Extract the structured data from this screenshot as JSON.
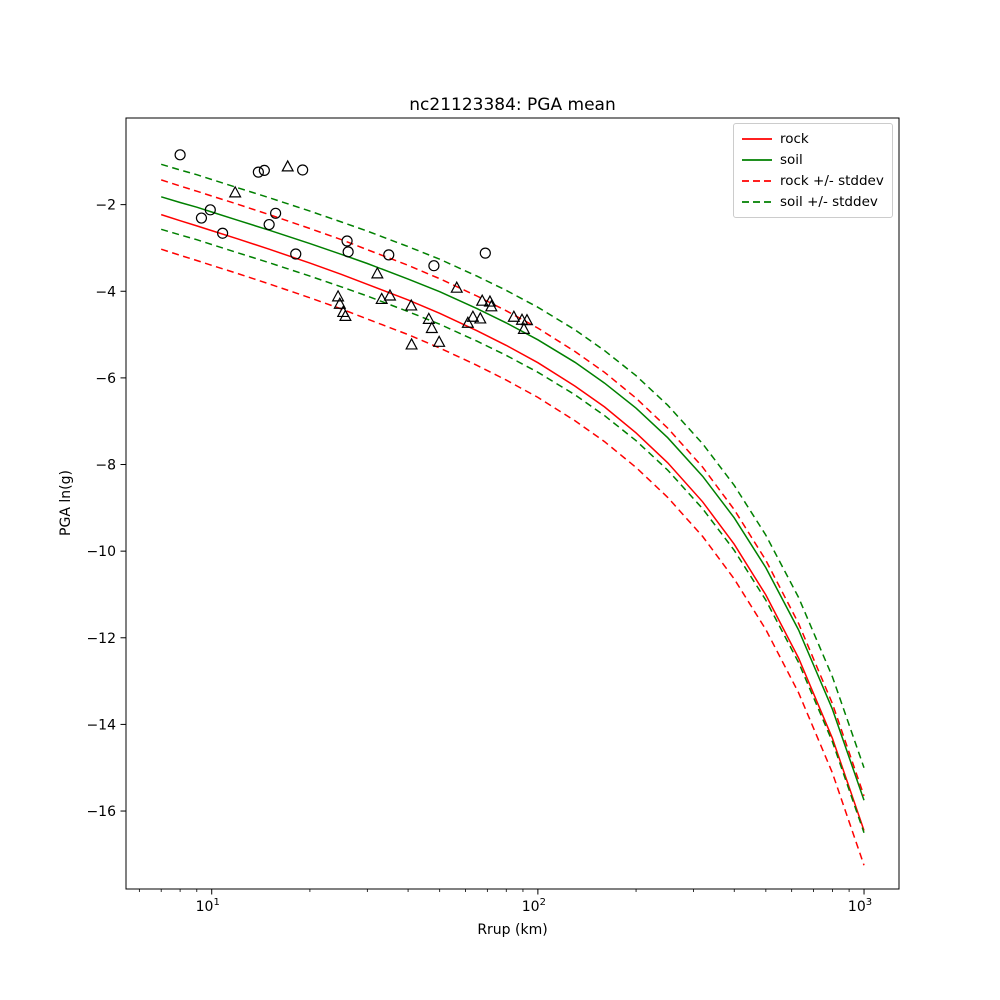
{
  "figure": {
    "title": "nc21123384: PGA mean",
    "xlabel": "Rrup (km)",
    "ylabel": "PGA ln(g)",
    "background": "#ffffff"
  },
  "colors": {
    "rock": "#ff0000",
    "soil": "#008000",
    "marker_edge": "#000000",
    "axis": "#000000",
    "legend_border": "#cccccc"
  },
  "legend": {
    "position": "upper right",
    "entries": [
      {
        "label": "rock",
        "color": "#ff0000",
        "dashed": false
      },
      {
        "label": "soil",
        "color": "#008000",
        "dashed": false
      },
      {
        "label": "rock +/- stddev",
        "color": "#ff0000",
        "dashed": true
      },
      {
        "label": "soil +/- stddev",
        "color": "#008000",
        "dashed": true
      }
    ]
  },
  "chart_data": {
    "type": "line",
    "title": "nc21123384: PGA mean",
    "xlabel": "Rrup (km)",
    "ylabel": "PGA ln(g)",
    "xscale": "log",
    "yscale": "linear",
    "xlim": [
      5.46,
      1280
    ],
    "ylim": [
      -17.8,
      0.0
    ],
    "grid": false,
    "x_major_ticks": [
      {
        "value": 10,
        "base": "10",
        "exp": "1"
      },
      {
        "value": 100,
        "base": "10",
        "exp": "2"
      },
      {
        "value": 1000,
        "base": "10",
        "exp": "3"
      }
    ],
    "x_minor_ticks": [
      6,
      7,
      8,
      9,
      20,
      30,
      40,
      50,
      60,
      70,
      80,
      90,
      200,
      300,
      400,
      500,
      600,
      700,
      800,
      900
    ],
    "y_ticks": [
      {
        "value": -2,
        "label": "−2"
      },
      {
        "value": -4,
        "label": "−4"
      },
      {
        "value": -6,
        "label": "−6"
      },
      {
        "value": -8,
        "label": "−8"
      },
      {
        "value": -10,
        "label": "−10"
      },
      {
        "value": -12,
        "label": "−12"
      },
      {
        "value": -14,
        "label": "−14"
      },
      {
        "value": -16,
        "label": "−16"
      }
    ],
    "series": [
      {
        "name": "rock",
        "style": "solid",
        "color": "#ff0000",
        "linewidth": 1.5,
        "x": [
          7,
          8,
          9,
          10,
          12,
          15,
          20,
          25,
          30,
          40,
          50,
          65,
          80,
          100,
          130,
          160,
          200,
          250,
          320,
          400,
          500,
          630,
          800,
          1000
        ],
        "y": [
          -2.23,
          -2.37,
          -2.49,
          -2.6,
          -2.79,
          -3.03,
          -3.35,
          -3.61,
          -3.84,
          -4.2,
          -4.51,
          -4.91,
          -5.25,
          -5.65,
          -6.19,
          -6.67,
          -7.27,
          -7.96,
          -8.86,
          -9.84,
          -11.01,
          -12.47,
          -14.32,
          -16.45
        ]
      },
      {
        "name": "soil",
        "style": "solid",
        "color": "#008000",
        "linewidth": 1.5,
        "x": [
          7,
          8,
          9,
          10,
          12,
          15,
          20,
          25,
          30,
          40,
          50,
          65,
          80,
          100,
          130,
          160,
          200,
          250,
          320,
          400,
          500,
          630,
          800,
          1000
        ],
        "y": [
          -1.82,
          -1.95,
          -2.06,
          -2.17,
          -2.36,
          -2.59,
          -2.9,
          -3.15,
          -3.36,
          -3.72,
          -4.01,
          -4.4,
          -4.73,
          -5.12,
          -5.64,
          -6.12,
          -6.7,
          -7.38,
          -8.27,
          -9.23,
          -10.38,
          -11.82,
          -13.65,
          -15.75
        ]
      },
      {
        "name": "rock +/- stddev",
        "style": "dashed",
        "color": "#ff0000",
        "linewidth": 1.5,
        "derived_from": "rock",
        "sigma": 0.8
      },
      {
        "name": "soil +/- stddev",
        "style": "dashed",
        "color": "#008000",
        "linewidth": 1.5,
        "derived_from": "soil",
        "sigma": 0.75
      }
    ],
    "scatter": [
      {
        "name": "recorded-circles",
        "marker": "circle",
        "edge_color": "#000000",
        "fill": "none",
        "points": [
          [
            8.0,
            -0.85
          ],
          [
            9.3,
            -2.31
          ],
          [
            9.9,
            -2.12
          ],
          [
            10.8,
            -2.66
          ],
          [
            13.9,
            -1.25
          ],
          [
            14.5,
            -1.21
          ],
          [
            15.0,
            -2.46
          ],
          [
            15.7,
            -2.2
          ],
          [
            18.1,
            -3.14
          ],
          [
            19.0,
            -1.2
          ],
          [
            26.0,
            -2.84
          ],
          [
            26.2,
            -3.09
          ],
          [
            34.9,
            -3.16
          ],
          [
            48.0,
            -3.41
          ],
          [
            69.0,
            -3.12
          ]
        ]
      },
      {
        "name": "recorded-triangles",
        "marker": "triangle_up",
        "edge_color": "#000000",
        "fill": "none",
        "points": [
          [
            11.8,
            -1.72
          ],
          [
            17.1,
            -1.12
          ],
          [
            24.4,
            -4.12
          ],
          [
            24.7,
            -4.29
          ],
          [
            25.3,
            -4.48
          ],
          [
            25.7,
            -4.57
          ],
          [
            32.2,
            -3.59
          ],
          [
            33.2,
            -4.18
          ],
          [
            35.2,
            -4.1
          ],
          [
            40.9,
            -4.33
          ],
          [
            41.0,
            -5.23
          ],
          [
            46.3,
            -4.64
          ],
          [
            47.3,
            -4.85
          ],
          [
            49.8,
            -5.17
          ],
          [
            56.4,
            -3.92
          ],
          [
            61.0,
            -4.73
          ],
          [
            63.2,
            -4.59
          ],
          [
            66.6,
            -4.63
          ],
          [
            67.5,
            -4.22
          ],
          [
            71.3,
            -4.24
          ],
          [
            72.0,
            -4.35
          ],
          [
            84.4,
            -4.59
          ],
          [
            89.4,
            -4.66
          ],
          [
            92.6,
            -4.67
          ],
          [
            90.6,
            -4.87
          ]
        ]
      }
    ]
  }
}
